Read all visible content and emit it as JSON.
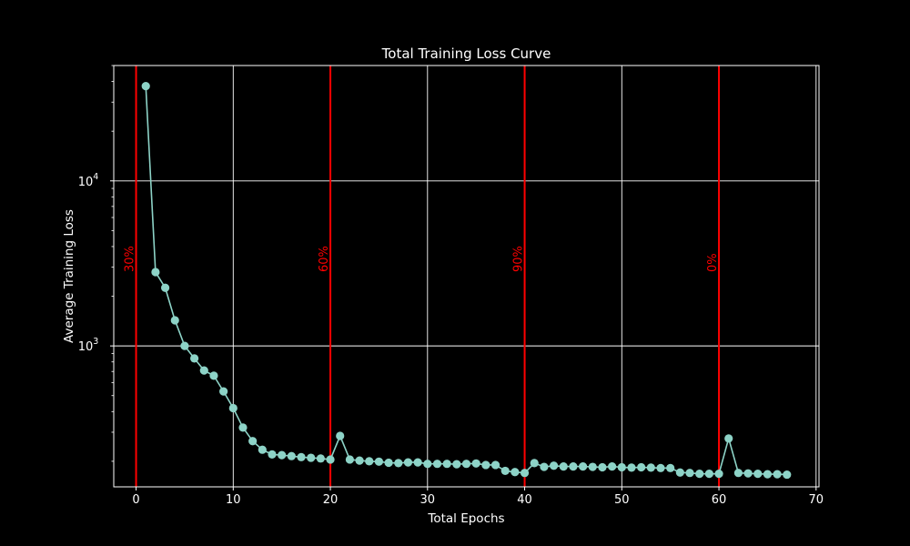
{
  "chart_data": {
    "type": "line",
    "title": "Total Training Loss Curve",
    "xlabel": "Total Epochs",
    "ylabel": "Average Training Loss",
    "xlim": [
      -2.3,
      70.3
    ],
    "ylim": [
      140,
      50000
    ],
    "yscale": "log",
    "grid": true,
    "x_ticks": [
      0,
      10,
      20,
      30,
      40,
      50,
      60,
      70
    ],
    "y_ticks": [
      1000,
      10000
    ],
    "y_tick_labels": [
      [
        "10",
        "3"
      ],
      [
        "10",
        "4"
      ]
    ],
    "line_color": "#8dd3c7",
    "vline_color": "#ff0000",
    "vertical_lines": [
      {
        "x": 0,
        "label": "30%"
      },
      {
        "x": 20,
        "label": "60%"
      },
      {
        "x": 40,
        "label": "90%"
      },
      {
        "x": 60,
        "label": "0%"
      }
    ],
    "series": [
      {
        "x": [
          1,
          2,
          3,
          4,
          5,
          6,
          7,
          8,
          9,
          10,
          11,
          12,
          13,
          14,
          15,
          16,
          17,
          18,
          19,
          20,
          21,
          22,
          23,
          24,
          25,
          26,
          27,
          28,
          29,
          30,
          31,
          32,
          33,
          34,
          35,
          36,
          37,
          38,
          39,
          40,
          41,
          42,
          43,
          44,
          45,
          46,
          47,
          48,
          49,
          50,
          51,
          52,
          53,
          54,
          55,
          56,
          57,
          58,
          59,
          60,
          61,
          62,
          63,
          64,
          65,
          66,
          67
        ],
        "values": [
          37500,
          2800,
          2250,
          1430,
          1000,
          840,
          710,
          660,
          530,
          420,
          320,
          265,
          235,
          220,
          218,
          215,
          212,
          210,
          208,
          205,
          285,
          205,
          202,
          200,
          199,
          196,
          195,
          197,
          197,
          193,
          193,
          193,
          192,
          193,
          194,
          190,
          190,
          175,
          172,
          170,
          195,
          185,
          188,
          186,
          186,
          186,
          185,
          184,
          186,
          184,
          183,
          184,
          183,
          182,
          182,
          171,
          170,
          168,
          168,
          168,
          275,
          170,
          169,
          168,
          167,
          167,
          166
        ]
      }
    ]
  }
}
